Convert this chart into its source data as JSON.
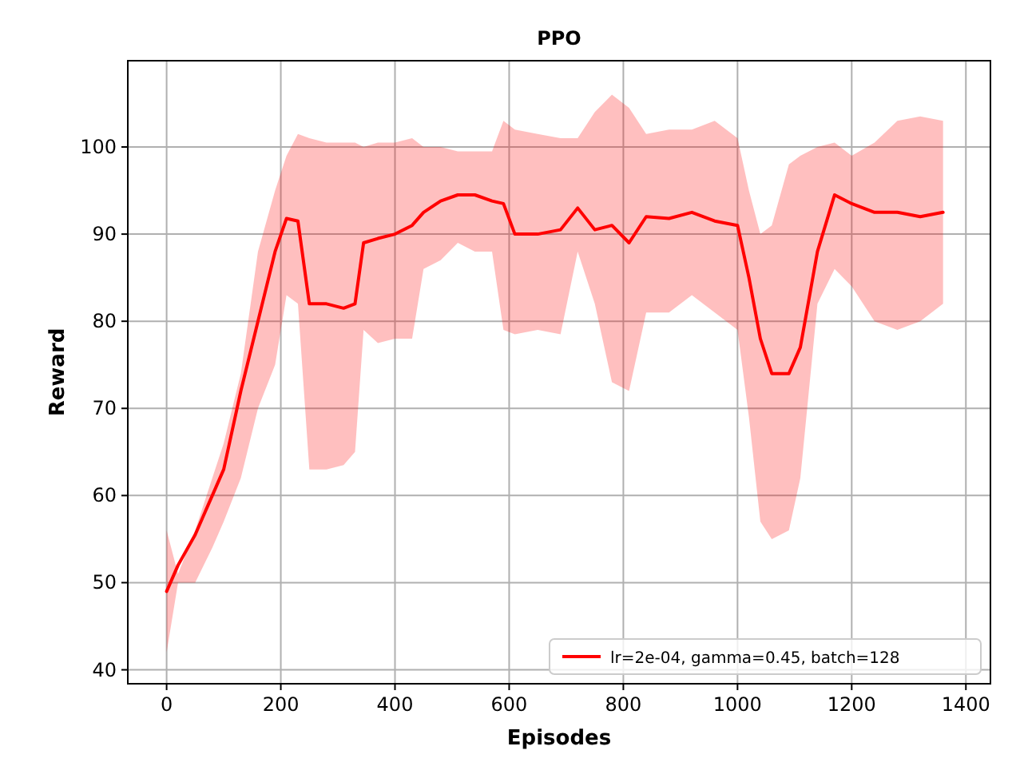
{
  "chart_data": {
    "type": "line",
    "title": "PPO",
    "xlabel": "Episodes",
    "ylabel": "Reward",
    "x": [
      0,
      20,
      50,
      80,
      100,
      130,
      160,
      190,
      210,
      230,
      250,
      280,
      310,
      330,
      345,
      370,
      400,
      430,
      450,
      480,
      510,
      540,
      570,
      590,
      610,
      650,
      690,
      720,
      750,
      780,
      810,
      840,
      880,
      920,
      960,
      1000,
      1020,
      1040,
      1060,
      1090,
      1110,
      1140,
      1170,
      1200,
      1240,
      1280,
      1320,
      1360
    ],
    "series": [
      {
        "name": "lr=2e-04, gamma=0.45, batch=128",
        "color": "#ff0000",
        "values": [
          49,
          52,
          55.5,
          60,
          63,
          72,
          80,
          88,
          91.8,
          91.5,
          82,
          82,
          81.5,
          82,
          89,
          89.5,
          90,
          91,
          92.5,
          93.8,
          94.5,
          94.5,
          93.8,
          93.5,
          90,
          90,
          90.5,
          93,
          90.5,
          91,
          89,
          92,
          91.8,
          92.5,
          91.5,
          91,
          85,
          78,
          74,
          74,
          77,
          88,
          94.5,
          93.5,
          92.5,
          92.5,
          92,
          92.5
        ],
        "upper": [
          56,
          51,
          56,
          62,
          66,
          74,
          88,
          95,
          99,
          101.5,
          101,
          100.5,
          100.5,
          100.5,
          100,
          100.5,
          100.5,
          101,
          100,
          100,
          99.5,
          99.5,
          99.5,
          103,
          102,
          101.5,
          101,
          101,
          104,
          106,
          104.5,
          101.5,
          102,
          102,
          103,
          101,
          95,
          90,
          91,
          98,
          99,
          100,
          100.5,
          99,
          100.5,
          103,
          103.5,
          103
        ],
        "lower": [
          42,
          50,
          50,
          54,
          57,
          62,
          70,
          75,
          83,
          82,
          63,
          63,
          63.5,
          65,
          79,
          77.5,
          78,
          78,
          86,
          87,
          89,
          88,
          88,
          79,
          78.5,
          79,
          78.5,
          88,
          82,
          73,
          72,
          81,
          81,
          83,
          81,
          79,
          69,
          57,
          55,
          56,
          62,
          82,
          86,
          84,
          80,
          79,
          80,
          82
        ]
      }
    ],
    "xlim": [
      -68,
      1443
    ],
    "ylim": [
      38.4,
      109.9
    ],
    "xticks": [
      0,
      200,
      400,
      600,
      800,
      1000,
      1200,
      1400
    ],
    "yticks": [
      40,
      50,
      60,
      70,
      80,
      90,
      100
    ],
    "grid": true,
    "legend": "bottom right"
  }
}
